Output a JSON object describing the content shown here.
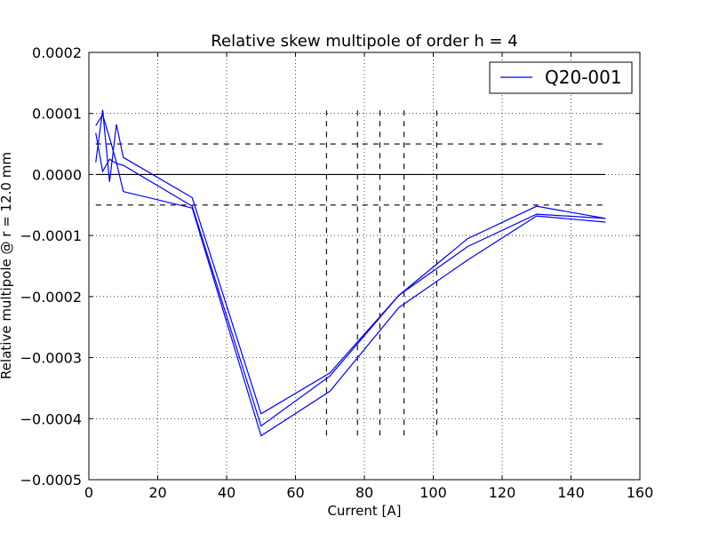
{
  "chart_data": {
    "type": "line",
    "title": "Relative skew multipole of order h = 4",
    "xlabel": "Current [A]",
    "ylabel": "Relative multipole @ r = 12.0 mm",
    "xlim": [
      0,
      160
    ],
    "ylim": [
      -0.0005,
      0.0002
    ],
    "xticks": [
      0,
      20,
      40,
      60,
      80,
      100,
      120,
      140,
      160
    ],
    "xtick_labels": [
      "0",
      "20",
      "40",
      "60",
      "80",
      "100",
      "120",
      "140",
      "160"
    ],
    "yticks": [
      -0.0005,
      -0.0004,
      -0.0003,
      -0.0002,
      -0.0001,
      0.0,
      0.0001,
      0.0002
    ],
    "ytick_labels": [
      "−0.0005",
      "−0.0004",
      "−0.0003",
      "−0.0002",
      "−0.0001",
      "0.0000",
      "0.0001",
      "0.0002"
    ],
    "grid": true,
    "legend_position": "top-right",
    "legend": [
      "Q20-001"
    ],
    "series_color": "#0000ff",
    "series": [
      {
        "name": "Q20-001",
        "x": [
          2,
          4,
          6,
          8,
          10,
          30,
          50,
          70,
          90,
          110,
          130,
          150
        ],
        "y": [
          2e-05,
          0.000106,
          -1.2e-05,
          8.2e-05,
          2.8e-05,
          -3.8e-05,
          -0.000392,
          -0.000325,
          -0.000198,
          -0.000105,
          -5.2e-05,
          -7.2e-05
        ]
      },
      {
        "x": [
          150,
          130,
          110,
          90,
          70,
          50,
          30,
          10,
          8,
          6,
          4,
          2
        ],
        "y": [
          -7.2e-05,
          -6.5e-05,
          -0.000118,
          -0.000198,
          -0.00033,
          -0.000412,
          -5.2e-05,
          1.5e-05,
          1.8e-05,
          2.5e-05,
          5e-06,
          6.8e-05
        ]
      },
      {
        "x": [
          2,
          4,
          6,
          8,
          10,
          30,
          50,
          70,
          90,
          110,
          130,
          150
        ],
        "y": [
          8e-05,
          9.8e-05,
          6e-05,
          2e-05,
          -2.8e-05,
          -5.5e-05,
          -0.000428,
          -0.000355,
          -0.000218,
          -0.00014,
          -6.8e-05,
          -7.8e-05
        ]
      }
    ],
    "hlines": [
      {
        "y": 0.0,
        "style": "solid",
        "xmin": 2,
        "xmax": 150
      },
      {
        "y": 5e-05,
        "style": "dashed",
        "xmin": 2,
        "xmax": 150
      },
      {
        "y": -5e-05,
        "style": "dashed",
        "xmin": 2,
        "xmax": 150
      }
    ],
    "vlines": [
      {
        "x": 69,
        "ymin": -0.00043,
        "ymax": 0.000105
      },
      {
        "x": 78,
        "ymin": -0.00043,
        "ymax": 0.000105
      },
      {
        "x": 84.5,
        "ymin": -0.00043,
        "ymax": 0.000105
      },
      {
        "x": 91.5,
        "ymin": -0.00043,
        "ymax": 0.000105
      },
      {
        "x": 101,
        "ymin": -0.00043,
        "ymax": 0.000105
      }
    ]
  }
}
